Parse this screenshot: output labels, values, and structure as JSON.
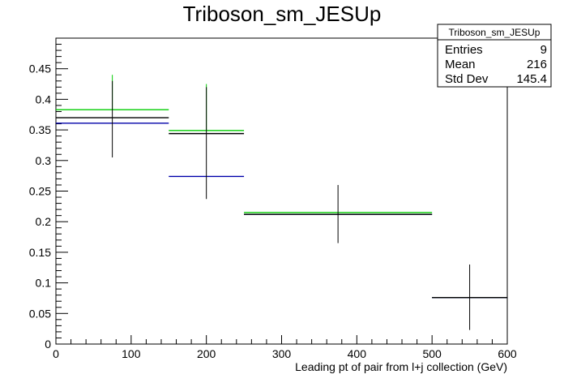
{
  "chart_data": {
    "type": "histogram",
    "title": "Triboson_sm_JESUp",
    "xlabel": "Leading pt of pair from l+j collection (GeV)",
    "ylabel": "",
    "xlim": [
      0,
      600
    ],
    "ylim": [
      0,
      0.5
    ],
    "x_ticks": [
      0,
      100,
      200,
      300,
      400,
      500,
      600
    ],
    "y_ticks": [
      0,
      0.05,
      0.1,
      0.15,
      0.2,
      0.25,
      0.3,
      0.35,
      0.4,
      0.45
    ],
    "x_tick_labels": [
      "0",
      "100",
      "200",
      "300",
      "400",
      "500",
      "600"
    ],
    "y_tick_labels": [
      "0",
      "0.05",
      "0.1",
      "0.15",
      "0.2",
      "0.25",
      "0.3",
      "0.35",
      "0.4",
      "0.45"
    ],
    "bins": [
      {
        "lo": 0,
        "hi": 150,
        "center": 75
      },
      {
        "lo": 150,
        "hi": 250,
        "center": 200
      },
      {
        "lo": 250,
        "hi": 500,
        "center": 375
      },
      {
        "lo": 500,
        "hi": 600,
        "center": 550
      }
    ],
    "series": [
      {
        "color": "#00cc00",
        "values": [
          0.383,
          0.349,
          0.215,
          0.076
        ],
        "err_hi": [
          0.44,
          0.425,
          null,
          null
        ],
        "err_lo": [
          null,
          null,
          null,
          null
        ]
      },
      {
        "color": "#0000aa",
        "values": [
          0.361,
          0.274,
          0.212,
          0.076
        ],
        "err_hi": [
          null,
          null,
          null,
          null
        ],
        "err_lo": [
          null,
          null,
          null,
          null
        ]
      },
      {
        "color": "#000000",
        "values": [
          0.37,
          0.344,
          0.212,
          0.076
        ],
        "err_hi": [
          0.43,
          0.42,
          0.26,
          0.13
        ],
        "err_lo": [
          0.305,
          0.237,
          0.165,
          0.023
        ]
      }
    ],
    "stats_box": {
      "title": "Triboson_sm_JESUp",
      "rows": [
        {
          "label": "Entries",
          "value": "9"
        },
        {
          "label": "Mean",
          "value": "216"
        },
        {
          "label": "Std Dev",
          "value": "145.4"
        }
      ]
    }
  }
}
